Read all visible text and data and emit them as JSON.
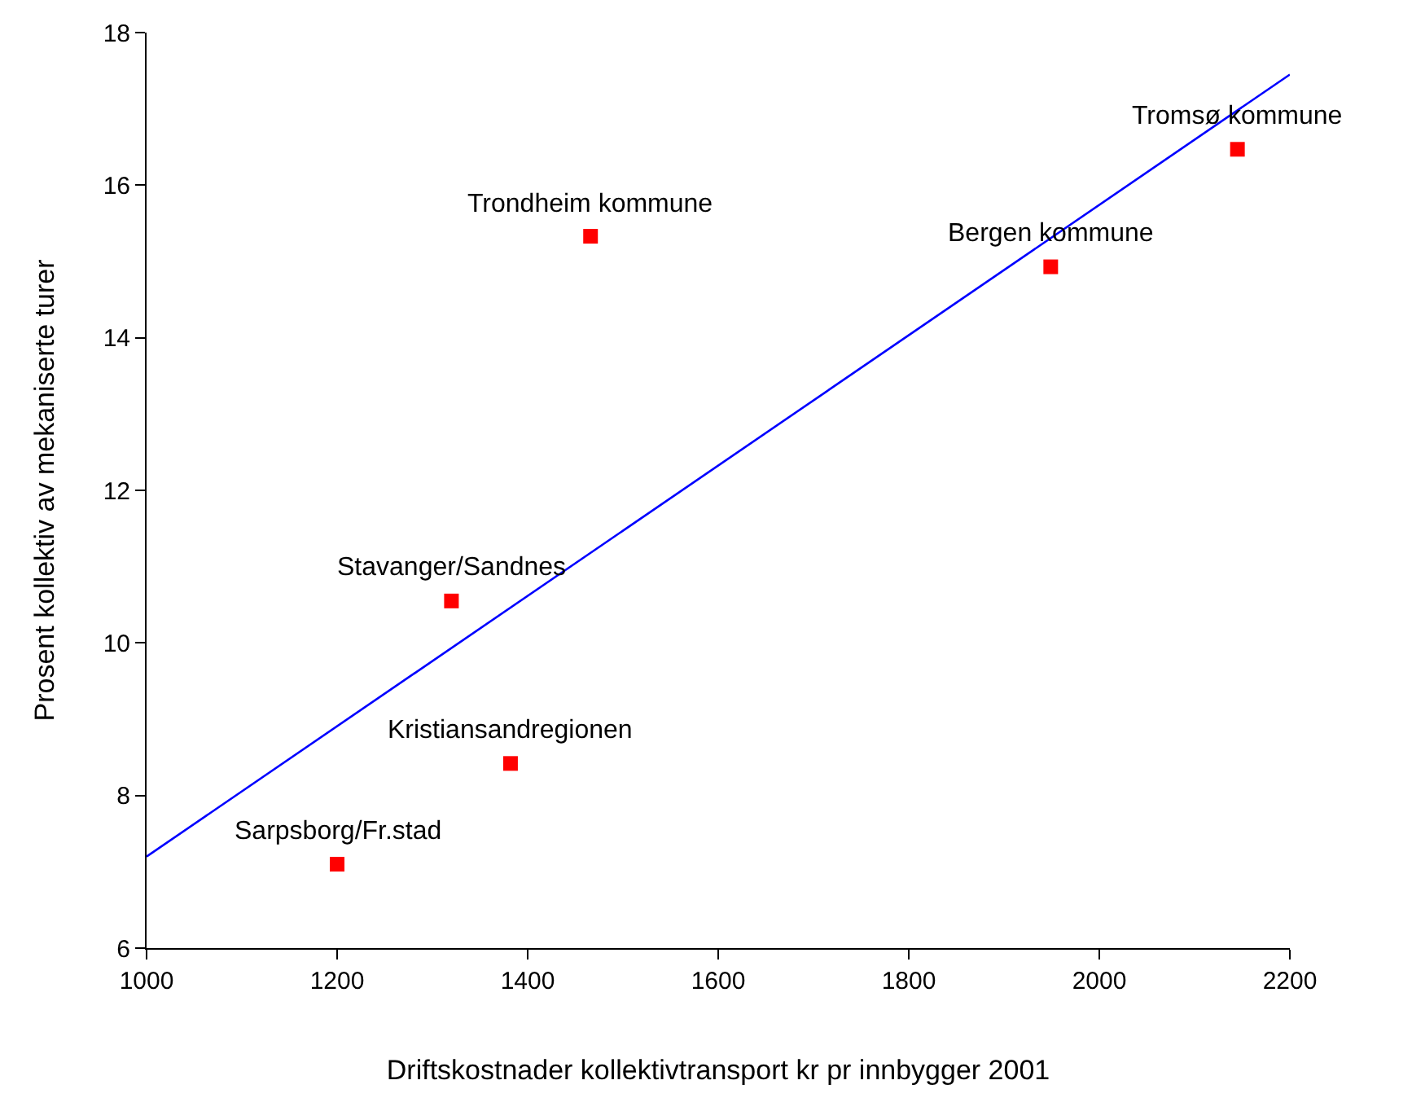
{
  "chart_data": {
    "type": "scatter",
    "xlabel": "Driftskostnader kollektivtransport kr pr innbygger 2001",
    "ylabel": "Prosent kollektiv av mekaniserte turer",
    "series": [
      {
        "color": "#ff0000",
        "marker": "square",
        "x": [
          1200,
          1320,
          1382,
          1466,
          1949,
          2145
        ],
        "values": [
          7.1,
          10.55,
          8.42,
          15.33,
          14.93,
          16.47
        ]
      },
      {
        "type": "line",
        "color": "#0000ff",
        "marker": "none",
        "x": [
          1000,
          2200
        ],
        "values": [
          7.2,
          17.45
        ]
      }
    ],
    "annotations": [
      {
        "text": "Sarpsborg/Fr.stad",
        "x": 1200,
        "y": 7.1
      },
      {
        "text": "Stavanger/Sandnes",
        "x": 1320,
        "y": 10.55
      },
      {
        "text": "Kristiansandregionen",
        "x": 1382,
        "y": 8.42
      },
      {
        "text": "Trondheim kommune",
        "x": 1466,
        "y": 15.33
      },
      {
        "text": "Bergen kommune",
        "x": 1949,
        "y": 14.93
      },
      {
        "text": "Tromsø kommune",
        "x": 2145,
        "y": 16.47
      }
    ],
    "xlim": [
      1000,
      2200
    ],
    "xticks": [
      1000,
      1200,
      1400,
      1600,
      1800,
      2000,
      2200
    ],
    "ylim": [
      6,
      18
    ],
    "yticks": [
      6,
      8,
      10,
      12,
      14,
      16,
      18
    ]
  }
}
